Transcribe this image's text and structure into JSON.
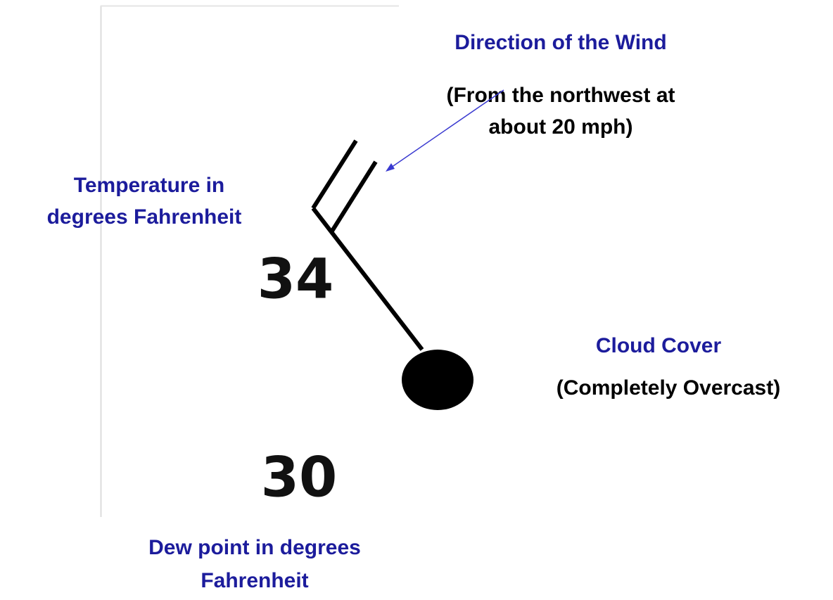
{
  "labels": {
    "wind_title": "Direction of the Wind",
    "wind_detail": [
      "(From the northwest at",
      "about 20 mph)"
    ],
    "temperature": [
      "Temperature in",
      "degrees Fahrenheit"
    ],
    "cloud_title": "Cloud Cover",
    "cloud_detail": "(Completely Overcast)",
    "dew_point": [
      "Dew point in degrees",
      "Fahrenheit"
    ]
  },
  "station": {
    "temperature": "34",
    "dew_point": "30"
  }
}
